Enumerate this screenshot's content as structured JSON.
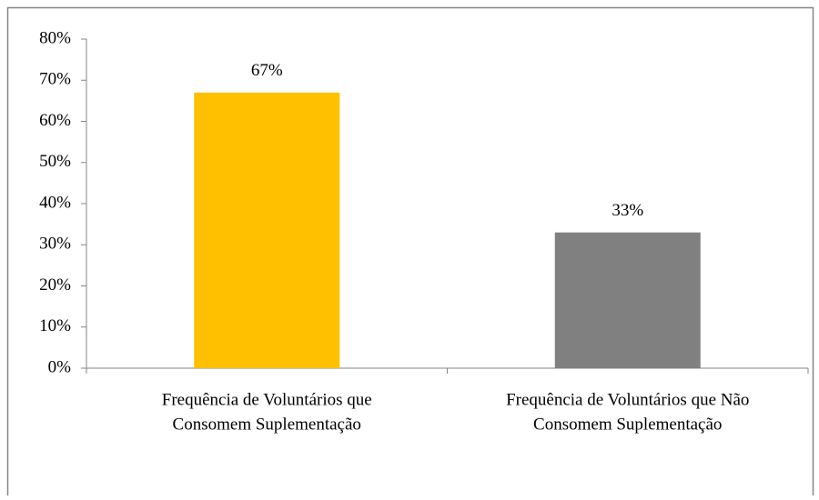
{
  "chart_data": {
    "type": "bar",
    "categories": [
      [
        "Frequência de Voluntários que",
        "Consomem Suplementação"
      ],
      [
        "Frequência de Voluntários que Não",
        "Consomem Suplementação"
      ]
    ],
    "values": [
      67,
      33
    ],
    "value_labels": [
      "67%",
      "33%"
    ],
    "colors": [
      "#FFC000",
      "#808080"
    ],
    "ylim": [
      0,
      80
    ],
    "yticks": [
      {
        "value": 0,
        "label": "0%"
      },
      {
        "value": 10,
        "label": "10%"
      },
      {
        "value": 20,
        "label": "20%"
      },
      {
        "value": 30,
        "label": "30%"
      },
      {
        "value": 40,
        "label": "40%"
      },
      {
        "value": 50,
        "label": "50%"
      },
      {
        "value": 60,
        "label": "60%"
      },
      {
        "value": 70,
        "label": "70%"
      },
      {
        "value": 80,
        "label": "80%"
      }
    ],
    "grid": false
  }
}
